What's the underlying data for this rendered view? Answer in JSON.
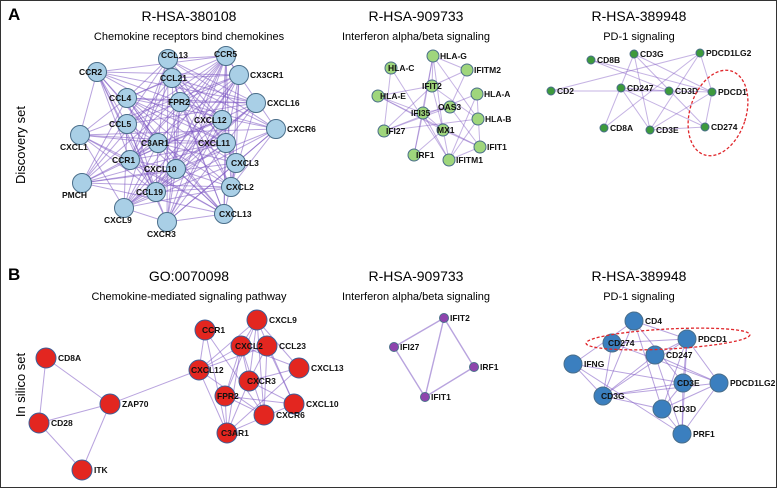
{
  "panel_labels": {
    "a": "A",
    "b": "B"
  },
  "set_labels": {
    "discovery": "Discovery set",
    "in_silico": "In silico set"
  },
  "colors": {
    "edge": "#7e57c2",
    "blue": "#a9cfe6",
    "green": "#9fd67c",
    "darkgreen": "#3d9a3c",
    "red": "#e32620",
    "purple": "#8e44ad",
    "steel": "#3b7fbf",
    "outline": "#4a6e8a",
    "highlight": "#e0262b"
  },
  "networks": [
    {
      "id": "a1",
      "title": "R-HSA-380108",
      "subtitle": "Chemokine receptors bind chemokines",
      "color": "blue",
      "nodes": [
        {
          "id": "CCR2",
          "label": "CCR2"
        },
        {
          "id": "CCL13",
          "label": "CCL13"
        },
        {
          "id": "CCR5",
          "label": "CCR5"
        },
        {
          "id": "CCL21",
          "label": "CCL21"
        },
        {
          "id": "CX3CR1",
          "label": "CX3CR1"
        },
        {
          "id": "CCL4",
          "label": "CCL4"
        },
        {
          "id": "FPR2",
          "label": "FPR2"
        },
        {
          "id": "CXCL16",
          "label": "CXCL16"
        },
        {
          "id": "CXCL1",
          "label": "CXCL1"
        },
        {
          "id": "CCL5",
          "label": "CCL5"
        },
        {
          "id": "C3AR1",
          "label": "C3AR1"
        },
        {
          "id": "CXCL12",
          "label": "CXCL12"
        },
        {
          "id": "CXCR6",
          "label": "CXCR6"
        },
        {
          "id": "CXCL11",
          "label": "CXCL11"
        },
        {
          "id": "CCR1",
          "label": "CCR1"
        },
        {
          "id": "CXCL3",
          "label": "CXCL3"
        },
        {
          "id": "CXCL10",
          "label": "CXCL10"
        },
        {
          "id": "PMCH",
          "label": "PMCH"
        },
        {
          "id": "CCL19",
          "label": "CCL19"
        },
        {
          "id": "CXCL2",
          "label": "CXCL2"
        },
        {
          "id": "CXCL9",
          "label": "CXCL9"
        },
        {
          "id": "CXCL13",
          "label": "CXCL13"
        },
        {
          "id": "CXCR3",
          "label": "CXCR3"
        }
      ]
    },
    {
      "id": "a2",
      "title": "R-HSA-909733",
      "subtitle": "Interferon alpha/beta signaling",
      "color": "green",
      "nodes": [
        {
          "id": "HLA-G",
          "label": "HLA-G"
        },
        {
          "id": "HLA-C",
          "label": "HLA-C"
        },
        {
          "id": "IFITM2",
          "label": "IFITM2"
        },
        {
          "id": "IFIT2",
          "label": "IFIT2"
        },
        {
          "id": "HLA-A",
          "label": "HLA-A"
        },
        {
          "id": "HLA-E",
          "label": "HLA-E"
        },
        {
          "id": "OAS3",
          "label": "OAS3"
        },
        {
          "id": "IFI35",
          "label": "IFI35"
        },
        {
          "id": "HLA-B",
          "label": "HLA-B"
        },
        {
          "id": "IFI27",
          "label": "IFI27"
        },
        {
          "id": "MX1",
          "label": "MX1"
        },
        {
          "id": "IFIT1",
          "label": "IFIT1"
        },
        {
          "id": "IRF1",
          "label": "IRF1"
        },
        {
          "id": "IFITM1",
          "label": "IFITM1"
        }
      ]
    },
    {
      "id": "a3",
      "title": "R-HSA-389948",
      "subtitle": "PD-1 signaling",
      "color": "darkgreen",
      "nodes": [
        {
          "id": "CD8B",
          "label": "CD8B"
        },
        {
          "id": "CD3G",
          "label": "CD3G"
        },
        {
          "id": "PDCD1LG2",
          "label": "PDCD1LG2"
        },
        {
          "id": "CD2",
          "label": "CD2"
        },
        {
          "id": "CD247",
          "label": "CD247"
        },
        {
          "id": "CD3D",
          "label": "CD3D"
        },
        {
          "id": "PDCD1",
          "label": "PDCD1"
        },
        {
          "id": "CD8A",
          "label": "CD8A"
        },
        {
          "id": "CD3E",
          "label": "CD3E"
        },
        {
          "id": "CD274",
          "label": "CD274"
        }
      ]
    },
    {
      "id": "b1",
      "title": "GO:0070098",
      "subtitle": "Chemokine-mediated signaling pathway",
      "color": "red",
      "nodes": [
        {
          "id": "CCR1",
          "label": "CCR1"
        },
        {
          "id": "CXCL9",
          "label": "CXCL9"
        },
        {
          "id": "CCL23",
          "label": "CCL23"
        },
        {
          "id": "CXCL2",
          "label": "CXCL2"
        },
        {
          "id": "CD8A",
          "label": "CD8A"
        },
        {
          "id": "CXCL12",
          "label": "CXCL12"
        },
        {
          "id": "CXCL13",
          "label": "CXCL13"
        },
        {
          "id": "CXCR3",
          "label": "CXCR3"
        },
        {
          "id": "ZAP70",
          "label": "ZAP70"
        },
        {
          "id": "FPR2",
          "label": "FPR2"
        },
        {
          "id": "CXCL10",
          "label": "CXCL10"
        },
        {
          "id": "CXCR6",
          "label": "CXCR6"
        },
        {
          "id": "CD28",
          "label": "CD28"
        },
        {
          "id": "C3AR1",
          "label": "C3AR1"
        },
        {
          "id": "ITK",
          "label": "ITK"
        }
      ]
    },
    {
      "id": "b2",
      "title": "R-HSA-909733",
      "subtitle": "Interferon alpha/beta signaling",
      "color": "purple",
      "nodes": [
        {
          "id": "IFIT2",
          "label": "IFIT2"
        },
        {
          "id": "IFI27",
          "label": "IFI27"
        },
        {
          "id": "IRF1",
          "label": "IRF1"
        },
        {
          "id": "IFIT1",
          "label": "IFIT1"
        }
      ]
    },
    {
      "id": "b3",
      "title": "R-HSA-389948",
      "subtitle": "PD-1 signaling",
      "color": "steel",
      "nodes": [
        {
          "id": "CD4",
          "label": "CD4"
        },
        {
          "id": "CD274",
          "label": "CD274"
        },
        {
          "id": "PDCD1",
          "label": "PDCD1"
        },
        {
          "id": "CD247",
          "label": "CD247"
        },
        {
          "id": "IFNG",
          "label": "IFNG"
        },
        {
          "id": "CD3E",
          "label": "CD3E"
        },
        {
          "id": "PDCD1LG2",
          "label": "PDCD1LG2"
        },
        {
          "id": "CD3G",
          "label": "CD3G"
        },
        {
          "id": "CD3D",
          "label": "CD3D"
        },
        {
          "id": "PRF1",
          "label": "PRF1"
        }
      ]
    }
  ]
}
